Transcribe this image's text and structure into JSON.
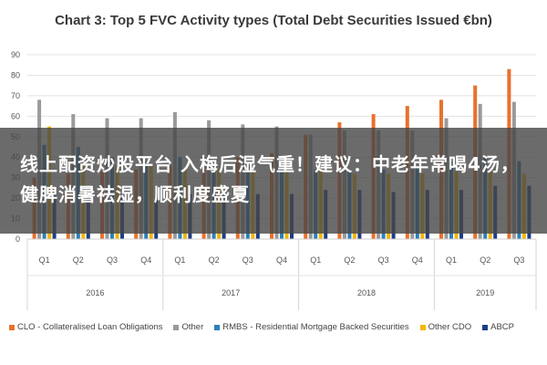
{
  "banner": {
    "text": "线上配资炒股平台 入梅后湿气重！建议：中老年常喝4汤，健脾消暑祛湿，顺利度盛夏"
  },
  "chart_data": {
    "type": "bar",
    "title": "Chart 3: Top 5 FVC Activity types (Total Debt Securities Issued €bn)",
    "xlabel": "",
    "ylabel": "",
    "ylim": [
      0,
      90
    ],
    "yticks": [
      0,
      10,
      20,
      30,
      40,
      50,
      60,
      70,
      80,
      90
    ],
    "grid": true,
    "legend_position": "bottom",
    "categories": [
      "Q1",
      "Q2",
      "Q3",
      "Q4",
      "Q1",
      "Q2",
      "Q3",
      "Q4",
      "Q1",
      "Q2",
      "Q3",
      "Q4",
      "Q1",
      "Q2",
      "Q3"
    ],
    "groups": [
      {
        "label": "2016",
        "count": 4
      },
      {
        "label": "2017",
        "count": 4
      },
      {
        "label": "2018",
        "count": 4
      },
      {
        "label": "2019",
        "count": 3
      }
    ],
    "series": [
      {
        "name": "CLO - Collateralised Loan Obligations",
        "color": "#e8712c",
        "values": [
          30,
          32,
          33,
          34,
          36,
          38,
          40,
          42,
          51,
          57,
          61,
          65,
          68,
          75,
          83
        ]
      },
      {
        "name": "Other",
        "color": "#9a9a9a",
        "values": [
          68,
          61,
          59,
          59,
          62,
          58,
          56,
          55,
          51,
          53,
          53,
          53,
          59,
          66,
          67
        ]
      },
      {
        "name": "RMBS - Residential Mortgage Backed Securities",
        "color": "#2c7fb8",
        "values": [
          46,
          45,
          40,
          38,
          40,
          38,
          36,
          35,
          34,
          33,
          34,
          35,
          38,
          40,
          38
        ]
      },
      {
        "name": "Other CDO",
        "color": "#f2b705",
        "values": [
          55,
          38,
          36,
          36,
          35,
          34,
          33,
          33,
          34,
          32,
          32,
          32,
          33,
          33,
          32
        ]
      },
      {
        "name": "ABCP",
        "color": "#1f3c88",
        "values": [
          22,
          21,
          20,
          19,
          22,
          23,
          22,
          22,
          24,
          24,
          23,
          24,
          24,
          26,
          26
        ]
      }
    ]
  }
}
